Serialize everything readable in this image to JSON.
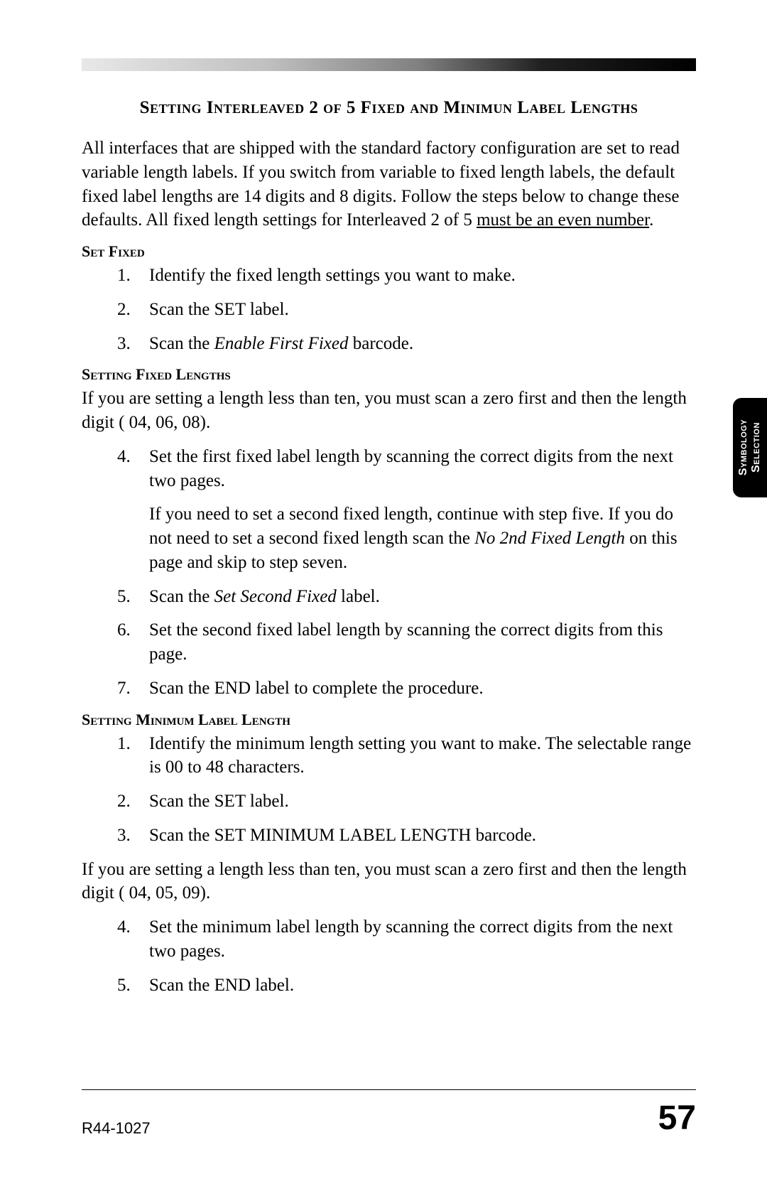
{
  "title": "Setting Interleaved 2 of 5 Fixed and Minimun Label Lengths",
  "intro_part1": "All interfaces that are shipped with the standard factory configuration are set to read variable length labels.  If you switch from variable to fixed length labels, the default fixed label lengths are 14 digits and 8 digits.  Follow the steps below to change these defaults.  All fixed length settings for Interleaved 2 of 5 ",
  "intro_underline": "must be an even number",
  "intro_part2": ".",
  "sections": {
    "set_fixed": {
      "heading": "Set Fixed",
      "items": [
        {
          "num": "1.",
          "text": "Identify the fixed length settings you want to make."
        },
        {
          "num": "2.",
          "text": "Scan the SET label."
        },
        {
          "num": "3.",
          "pre": "Scan the ",
          "italic": "Enable First Fixed",
          "post": " barcode."
        }
      ]
    },
    "setting_fixed_lengths": {
      "heading": "Setting Fixed Lengths",
      "lead": "If you are setting a length less than ten, you must scan a zero first and then the length digit ( 04, 06, 08).",
      "items": [
        {
          "num": "4.",
          "text": "Set the first fixed label length by scanning the correct digits from the next two pages."
        },
        {
          "sub_pre": "If you need to set a second fixed length, continue with step five.  If you do not need to set a second fixed length scan the ",
          "sub_italic": "No 2nd Fixed Length",
          "sub_post": " on this page and skip to step seven."
        },
        {
          "num": "5.",
          "pre": "Scan the ",
          "italic": " Set Second Fixed",
          "post": " label."
        },
        {
          "num": "6.",
          "text": "Set the second fixed label length by scanning the correct digits from this page."
        },
        {
          "num": "7.",
          "text": "Scan the END label to complete the procedure."
        }
      ]
    },
    "setting_minimum": {
      "heading": "Setting Minimum Label Length",
      "items1": [
        {
          "num": "1.",
          "text": "Identify the minimum length setting you want to make. The selectable range is 00 to 48 characters."
        },
        {
          "num": "2.",
          "text": "Scan the SET label."
        },
        {
          "num": "3.",
          "text": "Scan the SET MINIMUM LABEL LENGTH barcode."
        }
      ],
      "mid": "If you are setting a length less than ten, you must scan a zero first and then the length digit ( 04, 05, 09).",
      "items2": [
        {
          "num": "4.",
          "text": "Set the minimum label length by scanning the correct digits from the next two pages."
        },
        {
          "num": "5.",
          "text": "Scan the END label."
        }
      ]
    }
  },
  "side_tab": {
    "line1": "Symbology",
    "line2": "Selection"
  },
  "footer": {
    "doc_id": "R44-1027",
    "page_num": "57"
  }
}
